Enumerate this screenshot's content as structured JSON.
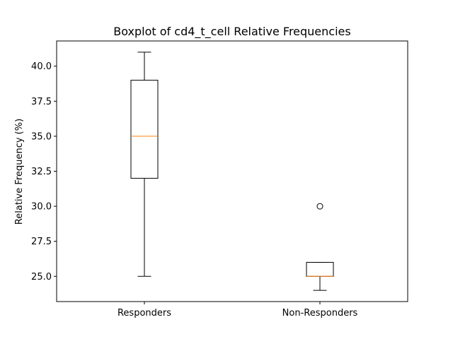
{
  "chart_data": {
    "type": "box",
    "title": "Boxplot of cd4_t_cell Relative Frequencies",
    "xlabel": "",
    "ylabel": "Relative Frequency (%)",
    "ylim": [
      23.2,
      41.8
    ],
    "yticks": [
      "25.0",
      "27.5",
      "30.0",
      "32.5",
      "35.0",
      "37.5",
      "40.0"
    ],
    "categories": [
      "Responders",
      "Non-Responders"
    ],
    "boxes": [
      {
        "category": "Responders",
        "whisker_low": 25.0,
        "q1": 32.0,
        "median": 35.0,
        "q3": 39.0,
        "whisker_high": 41.0,
        "outliers": []
      },
      {
        "category": "Non-Responders",
        "whisker_low": 24.0,
        "q1": 25.0,
        "median": 25.0,
        "q3": 26.0,
        "whisker_high": 26.0,
        "outliers": [
          30.0
        ]
      }
    ],
    "colors": {
      "box": "#000000",
      "median": "#ff7f0e"
    },
    "grid": false,
    "legend": "none"
  }
}
